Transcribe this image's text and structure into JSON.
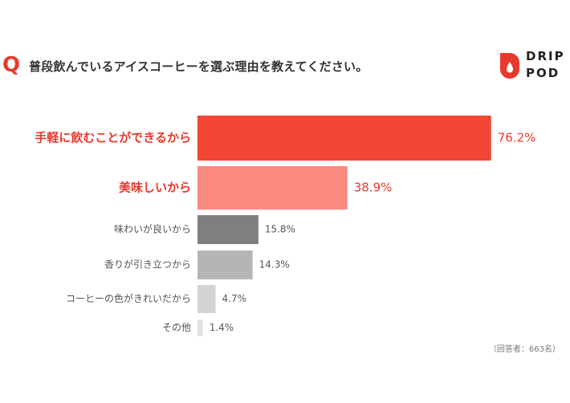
{
  "question": {
    "mark": "Q",
    "text": "普段飲んでいるアイスコーヒーを選ぶ理由を教えてください。"
  },
  "brand": {
    "line1": "DRIP",
    "line2": "POD"
  },
  "note": "（回答者：663名）",
  "colors": {
    "accent": "#f04633",
    "highlight_text": "#e8392d",
    "normal_text": "#555555"
  },
  "chart_data": {
    "type": "bar",
    "orientation": "horizontal",
    "categories": [
      "手軽に飲むことができるから",
      "美味しいから",
      "味わいが良いから",
      "香りが引き立つから",
      "コーヒーの色がきれいだから",
      "その他"
    ],
    "values": [
      76.2,
      38.9,
      15.8,
      14.3,
      4.7,
      1.4
    ],
    "value_labels": [
      "76.2%",
      "38.9%",
      "15.8%",
      "14.3%",
      "4.7%",
      "1.4%"
    ],
    "bar_colors": [
      "#f04633",
      "#fa8a7f",
      "#7f7f7f",
      "#b5b5b5",
      "#d4d4d4",
      "#e3e3e3"
    ],
    "highlighted": [
      true,
      true,
      false,
      false,
      false,
      false
    ],
    "xlim": [
      0,
      100
    ],
    "grid": false
  }
}
